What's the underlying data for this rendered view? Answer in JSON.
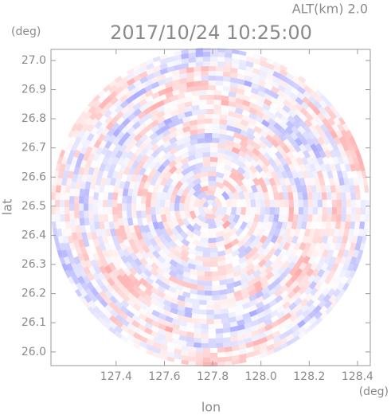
{
  "chart_data": {
    "type": "ppi",
    "title": "2017/10/24 10:25:00",
    "subtitle": "ALT(km)  2.0",
    "x_label": "lon",
    "y_label": "lat",
    "x_unit": "(deg)",
    "y_unit": "(deg)",
    "xlim": [
      127.13,
      128.453
    ],
    "ylim": [
      25.953,
      27.038
    ],
    "xticks": [
      127.4,
      127.6,
      127.8,
      {
        "value": 128.0,
        "label": "128.0"
      },
      128.2,
      128.4
    ],
    "yticks": [
      {
        "value": 26.0,
        "label": "26.0"
      },
      26.1,
      26.2,
      26.3,
      26.4,
      26.5,
      26.6,
      26.7,
      26.8,
      26.9,
      {
        "value": 27.0,
        "label": "27.0"
      }
    ]
  }
}
